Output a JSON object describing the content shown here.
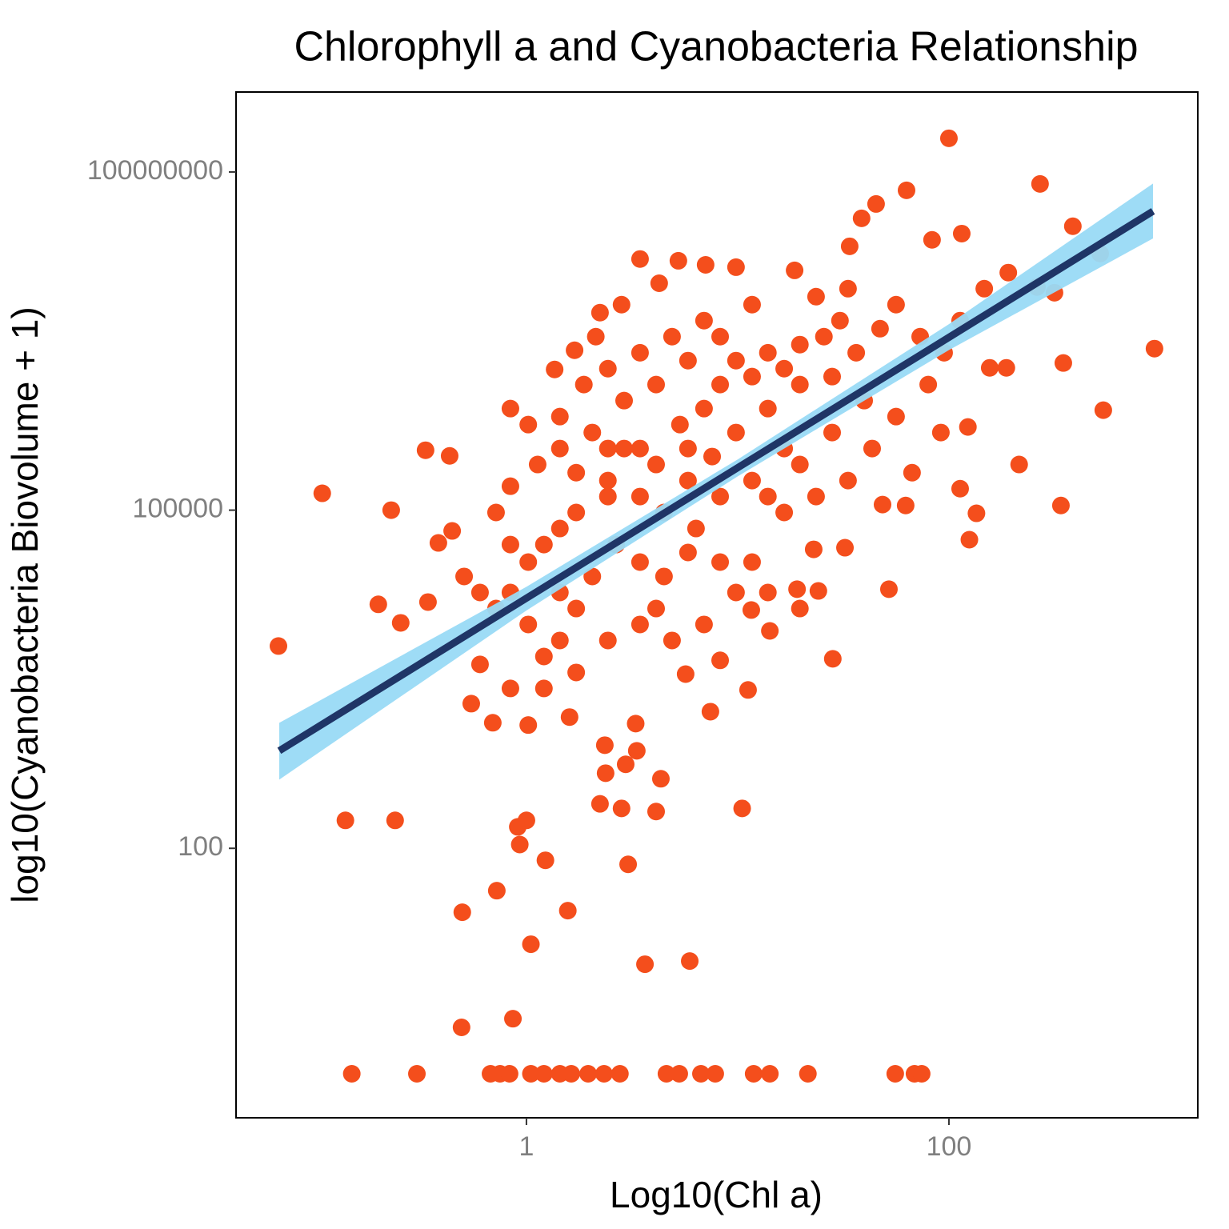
{
  "chart_data": {
    "type": "scatter",
    "title": "Chlorophyll a and Cyanobacteria Relationship",
    "x_label": "Log10(Chl a)",
    "y_label": "log10(Cyanobacteria Biovolume + 1)",
    "x_log": true,
    "y_log": true,
    "grid": false,
    "xlim": [
      0.0422,
      1507
    ],
    "ylim": [
      0.407,
      512000000
    ],
    "xticks": [
      1,
      100
    ],
    "yticks": [
      100,
      100000,
      100000000
    ],
    "color": "#f44e1c",
    "x": [
      0.149,
      0.303,
      0.676,
      0.75,
      0.832,
      1.05,
      1.21,
      1.44,
      1.63,
      1.96,
      2.33,
      2.77,
      4.6,
      5.29,
      6.7,
      7.83,
      11.9,
      14.2,
      21.5,
      55.7,
      68.7,
      74.3,
      0.493,
      0.863,
      3.64,
      5.93,
      1.05,
      0.497,
      1.57,
      0.724,
      3.03,
      1.23,
      0.139,
      0.239,
      0.91,
      1.0,
      0.93,
      10.5,
      2.23,
      2.82,
      4.11,
      4.33,
      2.95,
      2.37,
      3.33,
      2.35,
      3.29,
      0.067,
      0.108,
      0.229,
      0.333,
      0.433,
      0.199,
      0.254,
      0.342,
      0.383,
      0.445,
      0.548,
      0.693,
      1.02,
      1.6,
      7.43,
      11.2,
      5.67,
      28.2,
      52.0,
      24.1,
      19.1,
      14.2,
      11.6,
      215,
      339,
      348,
      538,
      940,
      386,
      270,
      520,
      316,
      261,
      100,
      63.0,
      45.2,
      83.2,
      115,
      38.6,
      33.9,
      156,
      187,
      125,
      135,
      113,
      48.5,
      62.4,
      123,
      91.6,
      32.2,
      22.9,
      66.9,
      3.45,
      5.24,
      7.05,
      9.82,
      18.6,
      4.25,
      2.23,
      2.82,
      2.13,
      1.69,
      1.36,
      1.87,
      0.84,
      0.84,
      1.13,
      1.44,
      2.05,
      2.9,
      4.11,
      2.43,
      3.45,
      5.33,
      6.93,
      8.26,
      11.7,
      13.9,
      19.7,
      25.6,
      30.5,
      36.4,
      47.2,
      56.2,
      73.1,
      19.7,
      13.9,
      9.82,
      7.57,
      5.82,
      4.48,
      6.35,
      8.26,
      11.7,
      16.6,
      19.7,
      16.6,
      11.7,
      8.26,
      5.82,
      4.48,
      3.45,
      2.66,
      2.05,
      1.44,
      1.72,
      2.43,
      3.45,
      4.11,
      1.44,
      1.21,
      1.02,
      0.84,
      0.718,
      0.603,
      0.84,
      1.21,
      1.72,
      1.02,
      1.21,
      1.44,
      1.72,
      2.43,
      2.9,
      4.11,
      5.82,
      8.26,
      6.93,
      11.7,
      23.5,
      33.3,
      2.43,
      3.45,
      4.89,
      9.82,
      16.6,
      28.0,
      39.7,
      56.2,
      79.8,
      94.9,
      113,
      147,
      191,
      43.3,
      33.3,
      23.5,
      28.0,
      13.9,
      5.82,
      3.45,
      1.72,
      2.43,
      1.44,
      1.02,
      0.718,
      0.84,
      0.603,
      0.507,
      13.9,
      19.7,
      9.82,
      6.93,
      8.26,
      4.89
    ],
    "values": [
      1,
      1,
      1,
      1,
      1,
      1,
      1,
      1,
      1,
      1,
      1,
      1,
      1,
      1,
      1,
      1,
      1,
      1,
      1,
      1,
      1,
      1,
      2.58,
      3.08,
      9.37,
      10,
      14.1,
      27.1,
      28.0,
      42.1,
      72.1,
      78.3,
      177,
      177,
      155,
      177,
      108,
      226,
      248,
      226,
      212,
      414,
      556,
      464,
      733,
      822,
      1277,
      6230,
      141000,
      100000,
      340000,
      303000,
      14600,
      10000,
      15300,
      51200,
      65400,
      1920,
      1300,
      1240,
      1460,
      1630,
      2540,
      3510,
      4800,
      19900,
      19200,
      19900,
      8490,
      13000,
      254000,
      110000,
      2020000,
      771000,
      2710000,
      33000000,
      78300000,
      18900000,
      8490000,
      9530000,
      199000000,
      68700000,
      52000000,
      25000000,
      28400000,
      38800000,
      21900000,
      1830000,
      1830000,
      54700,
      93700,
      155000,
      112000,
      110000,
      547000,
      488000,
      46400,
      44900,
      215000,
      16900000,
      16300000,
      15000000,
      14300000,
      13400000,
      10300000,
      5650000,
      6650000,
      3460000,
      2620000,
      1770000,
      1300000,
      796000,
      163000,
      254000,
      352000,
      488000,
      352000,
      254000,
      183000,
      132000,
      574000,
      796000,
      1300000,
      1530000,
      2490000,
      2940000,
      3460000,
      4800000,
      2490000,
      4070000,
      6650000,
      3460000,
      1300000,
      796000,
      488000,
      299000,
      183000,
      95300,
      68700,
      132000,
      183000,
      352000,
      254000,
      95300,
      34600,
      34600,
      42100,
      25800,
      34600,
      49500,
      25800,
      18600,
      13400,
      6980,
      9680,
      13400,
      6980,
      5030,
      9680,
      18600,
      13400,
      4280,
      2620,
      2620,
      3630,
      34600,
      49500,
      68700,
      95300,
      132000,
      937000,
      1300000,
      2120000,
      3460000,
      4800000,
      6650000,
      7830000,
      9220000,
      1800000,
      2490000,
      3460000,
      2120000,
      1800000,
      1530000,
      937000,
      676000,
      1300000,
      2490000,
      4800000,
      9220000,
      12800000,
      352000,
      183000,
      132000,
      488000,
      132000,
      352000,
      352000,
      215000,
      352000,
      676000,
      574000,
      95300,
      49500,
      18600,
      25800,
      18600,
      13400,
      18600,
      9680,
      4650,
      6980
    ],
    "fit": {
      "line_color": "#1f3566",
      "band_color": "#99daf5",
      "x": [
        0.0676,
        1,
        10,
        100,
        925
      ],
      "y": [
        733,
        16560,
        237700,
        3410000,
        44900000
      ],
      "ymin": [
        407,
        12880,
        199500,
        2630000,
        25700000
      ],
      "ymax": [
        1297,
        20890,
        281800,
        4470000,
        79000000
      ]
    }
  }
}
